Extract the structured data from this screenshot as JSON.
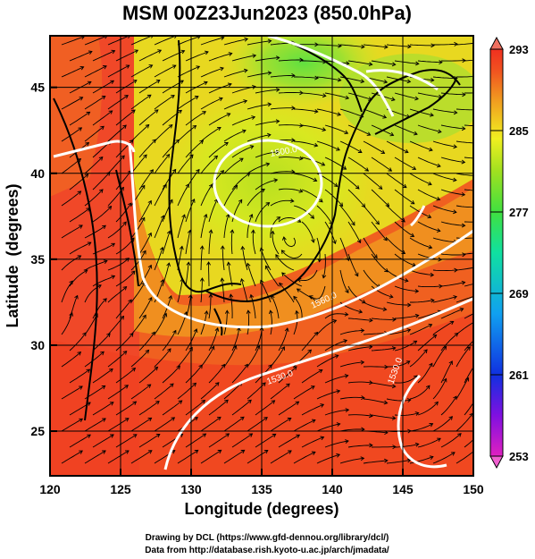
{
  "chart_data": {
    "type": "map",
    "title": "MSM 00Z23Jun2023 (850.0hPa)",
    "xlabel": "Longitude (degrees)",
    "ylabel": "Latitude  (degrees)",
    "xlim": [
      120,
      150
    ],
    "ylim": [
      22.4,
      48
    ],
    "x_ticks": [
      "120",
      "125",
      "130",
      "135",
      "140",
      "145",
      "150"
    ],
    "y_ticks": [
      "25",
      "30",
      "35",
      "40",
      "45"
    ],
    "colorbar": {
      "range": [
        253,
        293
      ],
      "tick_labels": [
        "293",
        "285",
        "277",
        "269",
        "261",
        "253"
      ],
      "colors": [
        "#e020c0",
        "#8010e0",
        "#1030e0",
        "#10a0f0",
        "#10e0a0",
        "#40e040",
        "#a0e020",
        "#f0f020",
        "#f0a020",
        "#f05020",
        "#f03020"
      ]
    },
    "contour_labels": [
      "1500.0",
      "1560.0",
      "1530.0",
      "1530.0"
    ],
    "credits": [
      "Drawing by DCL (https://www.gfd-dennou.org/library/dcl/)",
      "Data from http://database.rish.kyoto-u.ac.jp/arch/jmadata/"
    ]
  }
}
